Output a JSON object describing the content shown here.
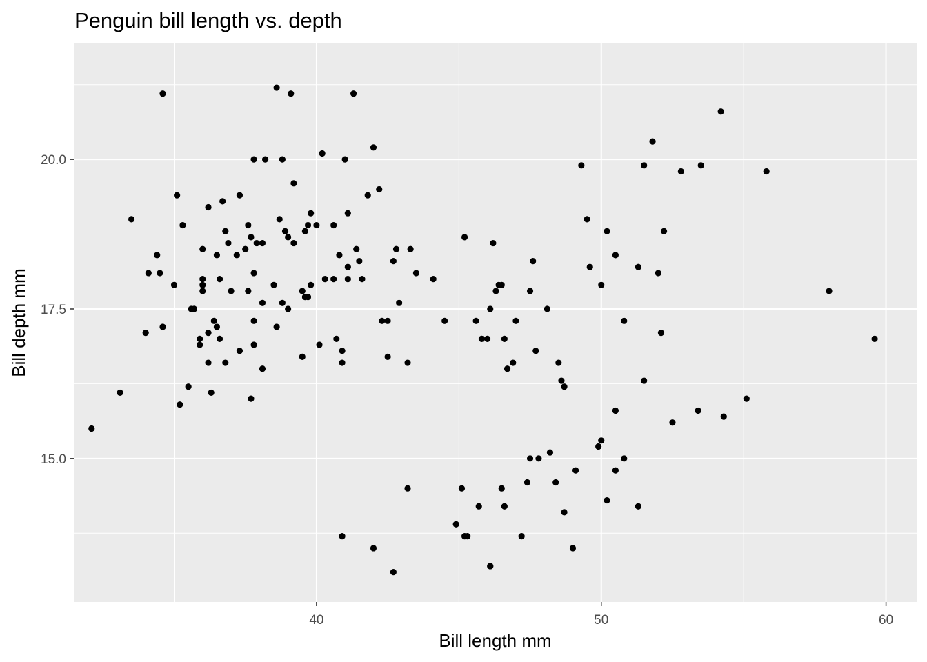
{
  "chart_data": {
    "type": "scatter",
    "title": "Penguin bill length vs. depth",
    "xlabel": "Bill length mm",
    "ylabel": "Bill depth mm",
    "xlim": [
      31.5,
      61.1
    ],
    "ylim": [
      12.6,
      21.95
    ],
    "xticks": [
      40,
      50,
      60
    ],
    "xtick_labels": [
      "40",
      "50",
      "60"
    ],
    "xticks_minor": [
      35,
      45,
      55
    ],
    "yticks": [
      15,
      17.5,
      20
    ],
    "ytick_labels": [
      "15.0",
      "17.5",
      "20.0"
    ],
    "yticks_minor": [
      13.75,
      16.25,
      18.75,
      21.25
    ],
    "grid": true,
    "legend": "none",
    "colors": {
      "panel": "#ebebeb",
      "grid": "#ffffff",
      "point": "#000000",
      "tick_text": "#4d4d4d"
    },
    "series": [
      {
        "x": [
          32.1,
          33.1,
          33.5,
          34.0,
          34.1,
          34.4,
          34.5,
          34.6,
          34.6,
          35.0,
          35.1,
          35.2,
          35.3,
          35.5,
          35.6,
          35.7,
          35.7,
          35.9,
          35.9,
          36.0,
          36.0,
          36.0,
          36.0,
          36.2,
          36.2,
          36.2,
          36.3,
          36.4,
          36.5,
          36.5,
          36.6,
          36.6,
          36.7,
          36.8,
          36.8,
          36.9,
          37.0,
          37.2,
          37.3,
          37.3,
          37.5,
          37.6,
          37.6,
          37.7,
          37.7,
          37.8,
          37.8,
          37.8,
          37.8,
          37.9,
          38.1,
          38.1,
          38.1,
          38.2,
          38.5,
          38.6,
          38.6,
          38.7,
          38.8,
          38.8,
          38.9,
          39.0,
          39.0,
          39.1,
          39.2,
          39.2,
          39.5,
          39.5,
          39.6,
          39.6,
          39.7,
          39.7,
          39.8,
          39.8,
          40.0,
          40.1,
          40.2,
          40.3,
          40.6,
          40.6,
          40.7,
          40.8,
          40.9,
          40.9,
          41.0,
          41.1,
          41.1,
          41.1,
          41.3,
          41.4,
          41.5,
          41.6,
          41.8,
          42.0,
          42.2,
          42.3,
          42.5,
          42.5,
          42.7,
          42.8,
          42.9,
          43.2,
          43.3,
          43.5,
          44.1,
          44.5,
          45.2,
          45.6,
          45.8,
          46.0,
          46.1,
          46.2,
          46.3,
          46.4,
          46.5,
          46.6,
          46.7,
          46.9,
          47.0,
          47.5,
          47.6,
          47.7,
          48.1,
          48.5,
          49.3,
          49.5,
          49.6,
          50.0,
          50.2,
          50.5,
          50.8,
          51.3,
          51.5,
          51.8,
          52.0,
          52.1,
          52.2,
          52.8,
          53.5,
          54.2,
          55.8,
          58.0,
          45.2,
          46.1,
          46.5,
          47.2,
          48.7,
          49.0,
          50.0,
          50.5,
          51.5,
          52.5,
          53.4,
          54.3,
          55.1,
          59.6,
          40.9,
          42.0,
          42.7,
          43.2,
          44.9,
          45.1,
          45.3,
          45.7,
          46.1,
          46.6,
          47.4,
          47.5,
          47.8,
          48.2,
          48.4,
          48.6,
          48.7,
          49.1,
          49.9,
          50.2,
          50.5,
          50.8,
          51.3
        ],
        "y": [
          15.5,
          16.1,
          19.0,
          17.1,
          18.1,
          18.4,
          18.1,
          21.1,
          17.2,
          17.9,
          19.4,
          15.9,
          18.9,
          16.2,
          17.5,
          17.5,
          17.5,
          16.9,
          17.0,
          18.0,
          17.9,
          17.8,
          18.5,
          16.6,
          19.2,
          17.1,
          16.1,
          17.3,
          17.2,
          18.4,
          17.0,
          18.0,
          19.3,
          18.8,
          16.6,
          18.6,
          17.8,
          18.4,
          19.4,
          16.8,
          18.5,
          18.9,
          17.8,
          16.0,
          18.7,
          20.0,
          17.3,
          18.1,
          16.9,
          18.6,
          18.6,
          17.6,
          16.5,
          20.0,
          17.9,
          17.2,
          21.2,
          19.0,
          17.6,
          20.0,
          18.8,
          17.5,
          18.7,
          21.1,
          18.6,
          19.6,
          17.8,
          16.7,
          18.8,
          17.7,
          18.9,
          17.7,
          19.1,
          17.9,
          18.9,
          16.9,
          20.1,
          18.0,
          18.0,
          18.9,
          17.0,
          18.4,
          16.8,
          16.6,
          20.0,
          19.1,
          18.2,
          18.0,
          21.1,
          18.5,
          18.3,
          18.0,
          19.4,
          20.2,
          19.5,
          17.3,
          17.3,
          16.7,
          18.3,
          18.5,
          17.6,
          16.6,
          18.5,
          18.1,
          18.0,
          17.3,
          18.7,
          17.3,
          17.0,
          17.0,
          17.5,
          18.6,
          17.8,
          17.9,
          17.9,
          17.0,
          16.5,
          16.6,
          17.3,
          17.8,
          18.3,
          16.8,
          17.5,
          16.6,
          19.9,
          19.0,
          18.2,
          17.9,
          18.8,
          18.4,
          17.3,
          18.2,
          19.9,
          20.3,
          18.1,
          17.1,
          18.8,
          19.8,
          19.9,
          20.8,
          19.8,
          17.8,
          13.7,
          13.2,
          14.5,
          13.7,
          14.1,
          13.5,
          15.3,
          15.8,
          16.3,
          15.6,
          15.8,
          15.7,
          16.0,
          17.0,
          13.7,
          13.5,
          13.1,
          14.5,
          13.9,
          14.5,
          13.7,
          14.2,
          13.2,
          14.2,
          14.6,
          15.0,
          15.0,
          15.1,
          14.6,
          16.3,
          16.2,
          14.8,
          15.2,
          14.3,
          14.8,
          15.0,
          14.2
        ],
        "y_note": ""
      }
    ]
  }
}
